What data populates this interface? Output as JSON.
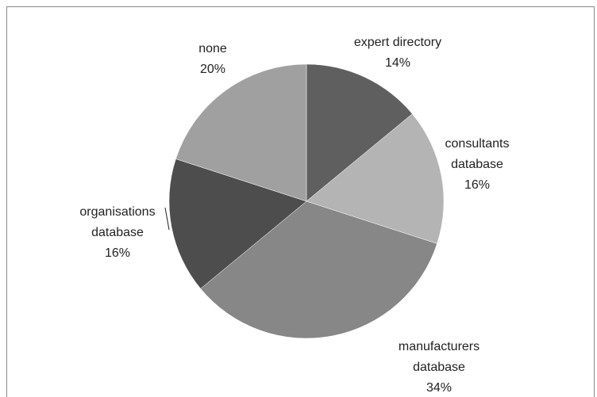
{
  "chart_data": {
    "type": "pie",
    "categories": [
      "expert directory",
      "consultants database",
      "manufacturers database",
      "organisations database",
      "none"
    ],
    "values": [
      14,
      16,
      34,
      16,
      20
    ],
    "value_labels": [
      "14%",
      "16%",
      "34%",
      "16%",
      "20%"
    ],
    "colors": [
      "#5f5f5f",
      "#b4b4b4",
      "#878787",
      "#4d4d4d",
      "#a0a0a0"
    ]
  }
}
